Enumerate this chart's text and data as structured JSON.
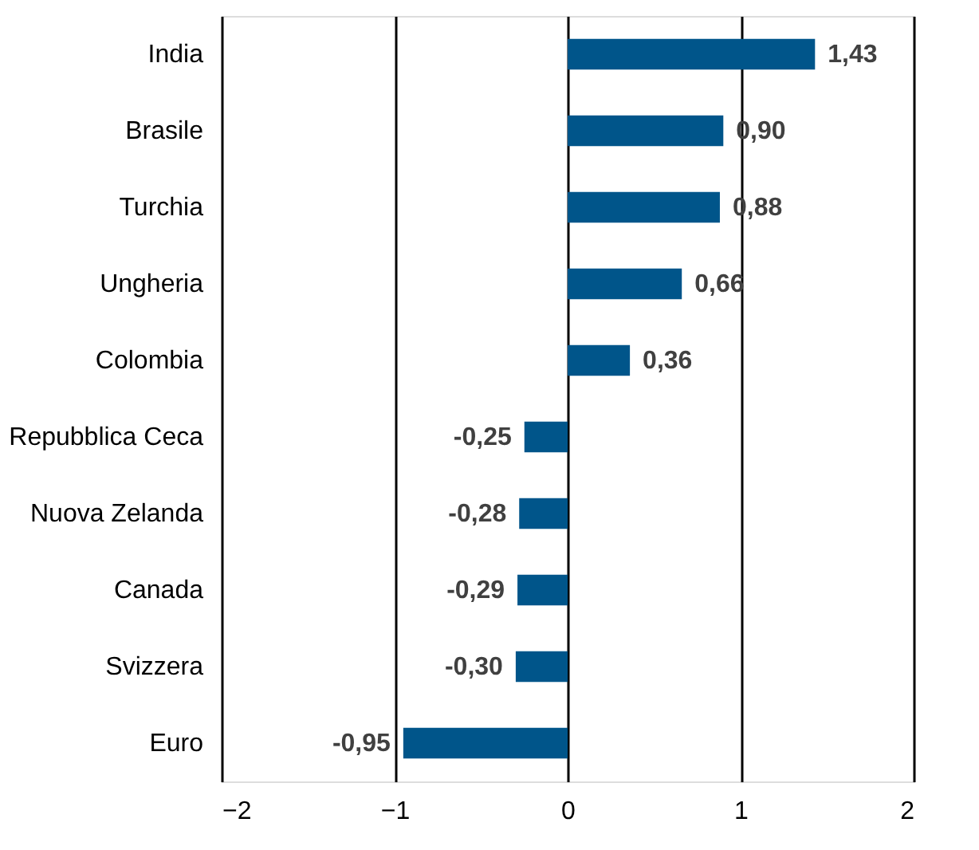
{
  "chart_data": {
    "type": "bar",
    "orientation": "horizontal",
    "categories": [
      "India",
      "Brasile",
      "Turchia",
      "Ungheria",
      "Colombia",
      "Repubblica Ceca",
      "Nuova Zelanda",
      "Canada",
      "Svizzera",
      "Euro"
    ],
    "values": [
      1.43,
      0.9,
      0.88,
      0.66,
      0.36,
      -0.25,
      -0.28,
      -0.29,
      -0.3,
      -0.95
    ],
    "value_labels": [
      "1,43",
      "0,90",
      "0,88",
      "0,66",
      "0,36",
      "-0,25",
      "-0,28",
      "-0,29",
      "-0,30",
      "-0,95"
    ],
    "color": "#00558a",
    "xlim": [
      -2,
      2
    ],
    "xticks": [
      -2,
      -1,
      0,
      1,
      2
    ],
    "grid": "x"
  }
}
